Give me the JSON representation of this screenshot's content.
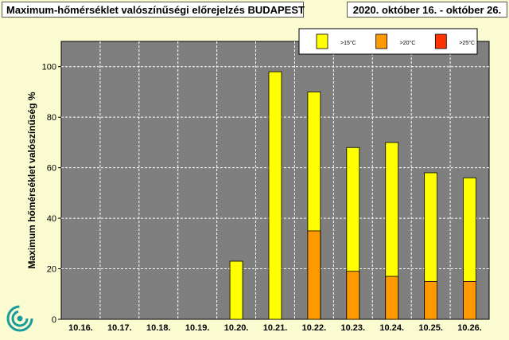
{
  "title": "Maximum-hőmérséklet valószínűségi előrejelzés BUDAPEST",
  "date_range": "2020. október 16. - október 26.",
  "colors": {
    "background": "#fbfbd2",
    "plot_bg": "#7f7f7f",
    "gt15": "#ffff00",
    "gt20": "#ff9900",
    "gt25": "#ff3300"
  },
  "chart_data": {
    "type": "bar",
    "ylabel": "Maximum hőmérséklet valószínűség %",
    "xlabel": "",
    "ylim": [
      0,
      110
    ],
    "yticks": [
      0,
      20,
      40,
      60,
      80,
      100
    ],
    "grid": true,
    "legend_position": "top-right",
    "categories": [
      "10.16.",
      "10.17.",
      "10.18.",
      "10.19.",
      "10.20.",
      "10.21.",
      "10.22.",
      "10.23.",
      "10.24.",
      "10.25.",
      "10.26."
    ],
    "series": [
      {
        "name": ">15°C",
        "color": "#ffff00",
        "values": [
          0,
          0,
          0,
          0,
          23,
          98,
          90,
          68,
          70,
          58,
          56
        ]
      },
      {
        "name": ">20°C",
        "color": "#ff9900",
        "values": [
          0,
          0,
          0,
          0,
          0,
          0,
          35,
          19,
          17,
          15,
          15
        ]
      },
      {
        "name": ">25°C",
        "color": "#ff3300",
        "values": [
          0,
          0,
          0,
          0,
          0,
          0,
          0,
          0,
          0,
          0,
          0
        ]
      }
    ]
  }
}
